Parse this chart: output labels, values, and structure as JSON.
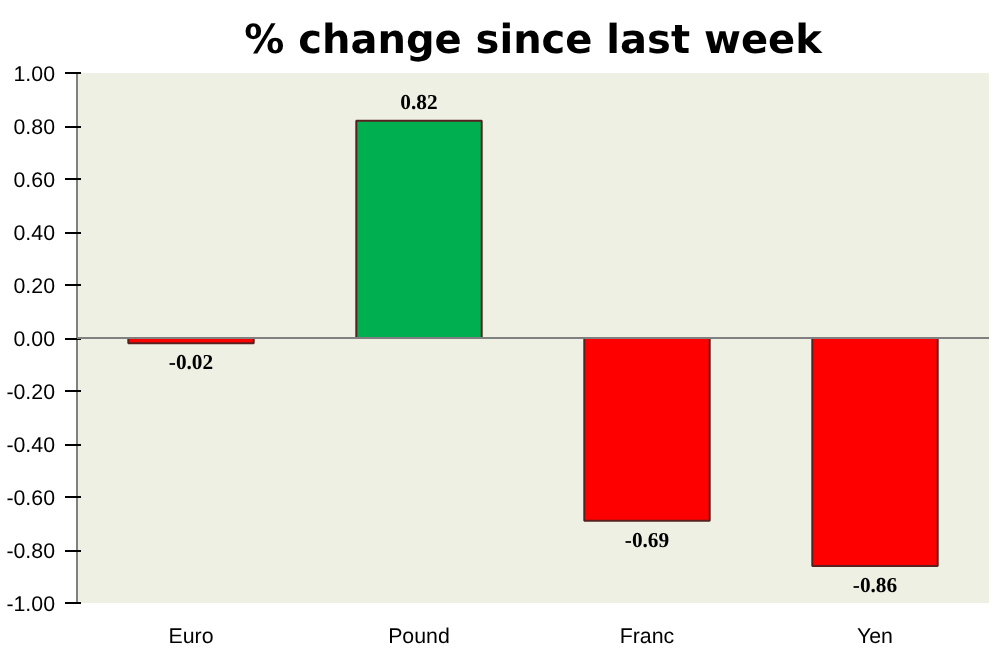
{
  "chart_data": {
    "type": "bar",
    "title": "% change since last week",
    "categories": [
      "Euro",
      "Pound",
      "Franc",
      "Yen"
    ],
    "values": [
      -0.02,
      0.82,
      -0.69,
      -0.86
    ],
    "colors": [
      "#ff0000",
      "#00b050",
      "#ff0000",
      "#ff0000"
    ],
    "ylim": [
      -1,
      1
    ],
    "yticks": [
      {
        "value": -1,
        "label": "-1.00"
      },
      {
        "value": -0.8,
        "label": "-0.80"
      },
      {
        "value": -0.6,
        "label": "-0.60"
      },
      {
        "value": -0.4,
        "label": "-0.40"
      },
      {
        "value": -0.2,
        "label": "-0.20"
      },
      {
        "value": 0,
        "label": "0.00"
      },
      {
        "value": 0.2,
        "label": "0.20"
      },
      {
        "value": 0.4,
        "label": "0.40"
      },
      {
        "value": 0.6,
        "label": "0.60"
      },
      {
        "value": 0.8,
        "label": "0.80"
      },
      {
        "value": 1,
        "label": "1.00"
      }
    ],
    "data_labels": true
  }
}
